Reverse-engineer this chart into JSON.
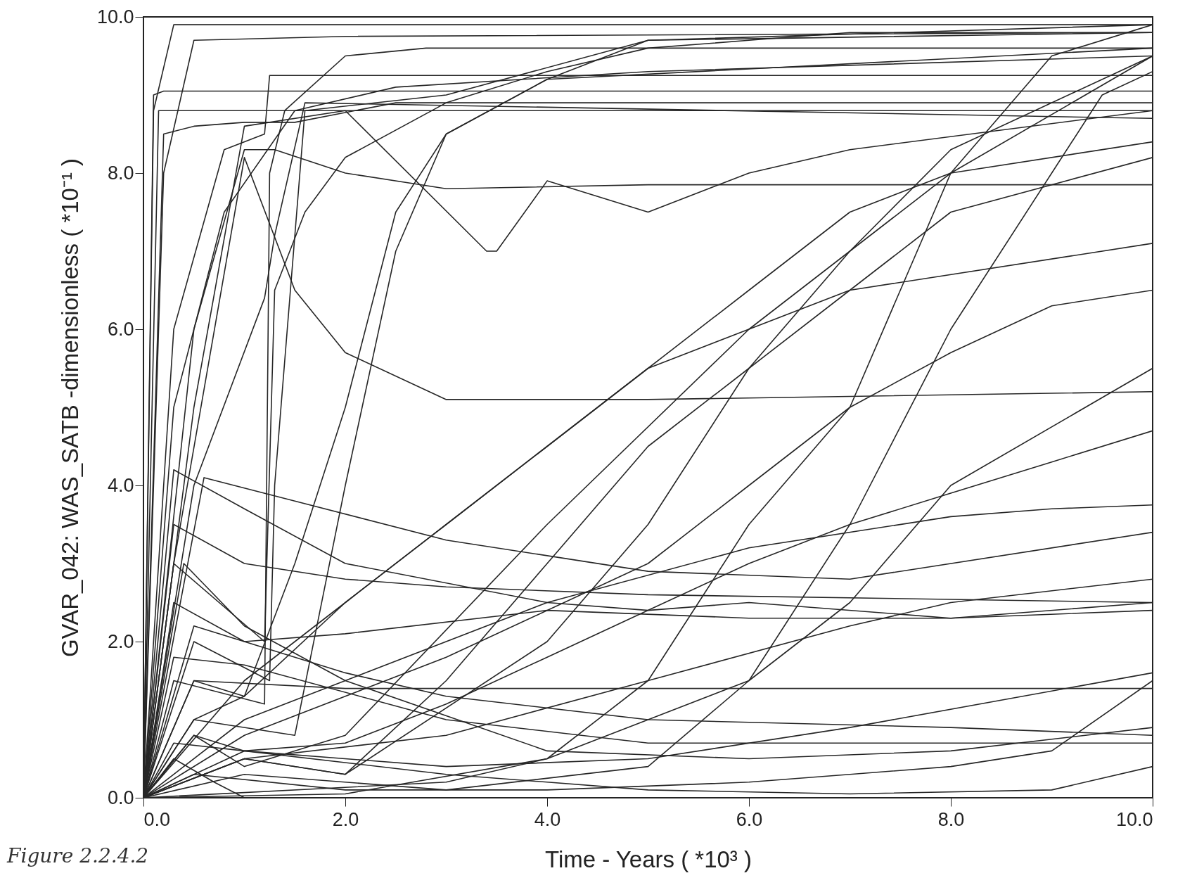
{
  "chart_data": {
    "type": "line",
    "xlabel": "Time - Years ( *10³ )",
    "ylabel": "GVAR_042:  WAS_SATB -dimensionless ( *10⁻¹ )",
    "annotations": [
      "Figure 2.2.4.2"
    ],
    "xlim": [
      0,
      10
    ],
    "ylim": [
      0,
      10
    ],
    "xticks": [
      {
        "value": 0,
        "label": "0.0"
      },
      {
        "value": 2,
        "label": "2.0"
      },
      {
        "value": 4,
        "label": "4.0"
      },
      {
        "value": 6,
        "label": "6.0"
      },
      {
        "value": 8,
        "label": "8.0"
      },
      {
        "value": 10,
        "label": "10.0"
      }
    ],
    "yticks": [
      {
        "value": 0,
        "label": "0.0"
      },
      {
        "value": 2,
        "label": "2.0"
      },
      {
        "value": 4,
        "label": "4.0"
      },
      {
        "value": 6,
        "label": "6.0"
      },
      {
        "value": 8,
        "label": "8.0"
      },
      {
        "value": 10,
        "label": "10.0"
      }
    ],
    "grid": false,
    "series": [
      {
        "color": "#262626",
        "x": [
          0,
          0.1,
          0.3,
          10
        ],
        "values": [
          0,
          8.8,
          9.9,
          9.9
        ]
      },
      {
        "color": "#262626",
        "x": [
          0,
          0.1,
          0.2,
          10
        ],
        "values": [
          0,
          9.0,
          9.05,
          9.05
        ]
      },
      {
        "color": "#262626",
        "x": [
          0,
          0.15,
          0.3,
          1.5,
          10
        ],
        "values": [
          0,
          8.8,
          8.8,
          8.8,
          8.8
        ]
      },
      {
        "color": "#262626",
        "x": [
          0,
          0.2,
          0.5,
          2,
          10
        ],
        "values": [
          0,
          8,
          9.7,
          9.75,
          9.8
        ]
      },
      {
        "color": "#262626",
        "x": [
          0,
          0.3,
          0.8,
          1.2,
          1.25,
          10
        ],
        "values": [
          0,
          6,
          8.3,
          8.5,
          9.25,
          9.25
        ]
      },
      {
        "color": "#262626",
        "x": [
          0,
          0.3,
          0.8,
          1.5,
          2.5,
          5,
          10
        ],
        "values": [
          0,
          5,
          7.5,
          8.8,
          9.1,
          9.3,
          9.5
        ]
      },
      {
        "color": "#262626",
        "x": [
          0,
          0.5,
          1.2,
          1.3,
          1.6,
          10
        ],
        "values": [
          0,
          4,
          6.4,
          7.2,
          8.9,
          8.7
        ]
      },
      {
        "color": "#262626",
        "x": [
          0,
          0.5,
          1,
          1.3,
          2,
          3,
          5,
          10
        ],
        "values": [
          0,
          6,
          8.3,
          8.3,
          8.0,
          7.8,
          7.85,
          7.85
        ]
      },
      {
        "color": "#262626",
        "x": [
          0,
          0.5,
          1,
          2,
          3.4,
          3.5,
          4,
          5,
          6,
          7,
          10
        ],
        "values": [
          0,
          5,
          8.6,
          8.8,
          7,
          7,
          7.9,
          7.5,
          8.0,
          8.3,
          8.8
        ]
      },
      {
        "color": "#262626",
        "x": [
          0,
          0.3,
          1.0,
          1.5,
          2,
          3,
          5,
          10
        ],
        "values": [
          0,
          3,
          8.2,
          6.5,
          5.7,
          5.1,
          5.1,
          5.2
        ]
      },
      {
        "color": "#262626",
        "x": [
          0,
          0.3,
          1.2,
          1.25,
          1.4,
          2,
          2.8,
          10
        ],
        "values": [
          0,
          1.5,
          1.2,
          8,
          8.8,
          9.5,
          9.6,
          9.6
        ]
      },
      {
        "color": "#262626",
        "x": [
          0,
          0.5,
          1.25,
          1.3,
          1.6,
          3,
          5,
          10
        ],
        "values": [
          0,
          2,
          1.5,
          4,
          8.8,
          9.0,
          9.7,
          9.8
        ]
      },
      {
        "color": "#262626",
        "x": [
          0,
          0.5,
          1,
          2,
          4,
          6,
          8,
          10
        ],
        "values": [
          0,
          0.8,
          0.4,
          0.8,
          3.5,
          6,
          8,
          9.5
        ]
      },
      {
        "color": "#262626",
        "x": [
          0,
          1,
          2,
          3,
          4,
          5,
          6,
          7,
          8,
          10
        ],
        "values": [
          0,
          0.5,
          0.3,
          1.5,
          3,
          4.5,
          5.5,
          6.5,
          7.5,
          8.2
        ]
      },
      {
        "color": "#262626",
        "x": [
          0,
          1,
          2,
          3,
          4,
          5,
          6,
          7,
          8,
          9,
          10
        ],
        "values": [
          0,
          0.6,
          0.7,
          1.2,
          1.8,
          2.4,
          3,
          3.5,
          3.9,
          4.3,
          4.7
        ]
      },
      {
        "color": "#262626",
        "x": [
          0,
          0.5,
          2,
          4,
          6,
          8,
          10
        ],
        "values": [
          0,
          1.5,
          1.4,
          1.4,
          1.4,
          1.4,
          1.4
        ]
      },
      {
        "color": "#262626",
        "x": [
          0,
          0.3,
          1,
          3,
          5,
          7,
          9,
          10
        ],
        "values": [
          0,
          0.7,
          0.6,
          0.3,
          0.1,
          0.05,
          0.1,
          0.4
        ]
      },
      {
        "color": "#262626",
        "x": [
          0,
          0.5,
          2,
          4,
          6,
          7,
          8,
          9,
          10
        ],
        "values": [
          0,
          0.3,
          0.1,
          0.1,
          0.2,
          0.3,
          0.4,
          0.6,
          1.5
        ]
      },
      {
        "color": "#262626",
        "x": [
          0,
          0.3,
          1,
          2,
          3,
          5,
          10
        ],
        "values": [
          0,
          3.5,
          3,
          2.8,
          2.7,
          2.6,
          2.5
        ]
      },
      {
        "color": "#262626",
        "x": [
          0,
          0.3,
          1,
          2,
          4,
          5,
          6,
          8,
          10
        ],
        "values": [
          0,
          4.2,
          3.7,
          3,
          2.5,
          2.4,
          2.5,
          2.3,
          2.4
        ]
      },
      {
        "color": "#262626",
        "x": [
          0,
          0.5,
          1,
          2,
          3,
          5,
          8,
          10
        ],
        "values": [
          0,
          2.2,
          2.0,
          1.6,
          1.3,
          1.0,
          0.9,
          0.8
        ]
      },
      {
        "color": "#262626",
        "x": [
          0,
          0.4,
          1,
          2,
          4,
          6,
          8,
          10
        ],
        "values": [
          0,
          3,
          2.2,
          1.5,
          0.6,
          0.5,
          0.6,
          0.9
        ]
      },
      {
        "color": "#262626",
        "x": [
          0,
          1,
          2,
          4,
          6,
          8,
          9,
          10
        ],
        "values": [
          0,
          1,
          1.5,
          2.5,
          3.2,
          3.6,
          3.7,
          3.75
        ]
      },
      {
        "color": "#262626",
        "x": [
          0,
          1,
          3,
          5,
          6,
          7,
          8,
          9,
          10
        ],
        "values": [
          0,
          0.8,
          1.8,
          3,
          4,
          5,
          5.7,
          6.3,
          6.5
        ]
      },
      {
        "color": "#262626",
        "x": [
          0,
          1,
          3,
          5,
          7,
          8,
          10
        ],
        "values": [
          0,
          0.5,
          0.8,
          1.5,
          2.2,
          2.5,
          2.8
        ]
      },
      {
        "color": "#262626",
        "x": [
          0,
          0.6,
          1.5,
          3,
          5,
          7,
          10
        ],
        "values": [
          0,
          4.1,
          3.8,
          3.3,
          2.9,
          2.8,
          3.4
        ]
      },
      {
        "color": "#262626",
        "x": [
          0,
          1,
          3,
          5,
          6,
          7,
          8,
          9,
          9.5,
          10
        ],
        "values": [
          0,
          0.3,
          0.1,
          0.4,
          1.5,
          3.5,
          6,
          8,
          9,
          9.3
        ]
      },
      {
        "color": "#262626",
        "x": [
          0,
          1,
          2,
          4,
          5,
          6,
          7,
          8,
          10
        ],
        "values": [
          0,
          0.5,
          0.3,
          2,
          3.5,
          5.5,
          7,
          8.3,
          9.5
        ]
      },
      {
        "color": "#262626",
        "x": [
          0,
          0.5,
          1,
          1.5,
          2,
          2.5,
          3,
          4,
          5,
          10
        ],
        "values": [
          0,
          1.5,
          1.3,
          3,
          5,
          7.5,
          8.5,
          9.2,
          9.7,
          9.9
        ]
      },
      {
        "color": "#262626",
        "x": [
          0,
          0.5,
          1.5,
          2,
          2.5,
          3,
          4,
          10
        ],
        "values": [
          0,
          1.0,
          0.8,
          4,
          7,
          8.5,
          9.2,
          9.6
        ]
      },
      {
        "color": "#262626",
        "x": [
          0,
          0.3,
          1,
          2,
          4,
          6,
          8,
          10
        ],
        "values": [
          0,
          2.5,
          2,
          2.1,
          2.4,
          2.3,
          2.3,
          2.5
        ]
      },
      {
        "color": "#262626",
        "x": [
          0,
          0.5,
          1,
          3,
          5,
          7,
          10
        ],
        "values": [
          0,
          0.8,
          0.6,
          0.4,
          0.5,
          0.9,
          1.6
        ]
      },
      {
        "color": "#262626",
        "x": [
          0,
          0.3,
          0.7,
          1,
          2,
          4,
          6,
          8,
          10
        ],
        "values": [
          0,
          0.5,
          0.2,
          0,
          0,
          0,
          0,
          0,
          0
        ]
      },
      {
        "color": "#262626",
        "x": [
          0,
          2,
          4,
          6,
          7,
          8,
          10
        ],
        "values": [
          0,
          0.05,
          0.5,
          1.5,
          2.5,
          4,
          5.5
        ]
      },
      {
        "color": "#262626",
        "x": [
          0,
          0.5,
          1,
          2,
          3,
          4,
          5,
          7,
          10
        ],
        "values": [
          0,
          1,
          1.3,
          2.5,
          3.5,
          4.5,
          5.5,
          6.5,
          7.1
        ]
      },
      {
        "color": "#262626",
        "x": [
          0,
          1,
          2,
          3,
          4,
          5,
          6,
          7,
          8,
          10
        ],
        "values": [
          0,
          1.5,
          2.5,
          3.5,
          4.5,
          5.5,
          6.5,
          7.5,
          8,
          8.4
        ]
      },
      {
        "color": "#262626",
        "x": [
          0,
          0.3,
          1.2,
          1.3,
          1.6,
          2,
          3,
          4,
          5,
          6,
          7,
          10
        ],
        "values": [
          0,
          3,
          2,
          6.5,
          7.5,
          8.2,
          8.9,
          9.3,
          9.6,
          9.7,
          9.8,
          9.8
        ]
      },
      {
        "color": "#262626",
        "x": [
          0,
          3,
          4,
          5,
          5.5,
          6,
          7,
          7.5,
          8,
          9,
          10
        ],
        "values": [
          0,
          0.2,
          0.5,
          1.5,
          2.5,
          3.5,
          5,
          6.5,
          8,
          9.5,
          9.9
        ]
      },
      {
        "color": "#262626",
        "x": [
          0,
          0.3,
          1,
          3,
          5,
          7,
          10
        ],
        "values": [
          0,
          1.8,
          1.7,
          1.0,
          0.7,
          0.7,
          0.7
        ]
      },
      {
        "color": "#262626",
        "x": [
          0,
          0.2,
          0.5,
          1,
          1.5,
          2.5,
          10
        ],
        "values": [
          0,
          8.5,
          8.6,
          8.65,
          8.65,
          8.9,
          8.9
        ]
      }
    ]
  }
}
